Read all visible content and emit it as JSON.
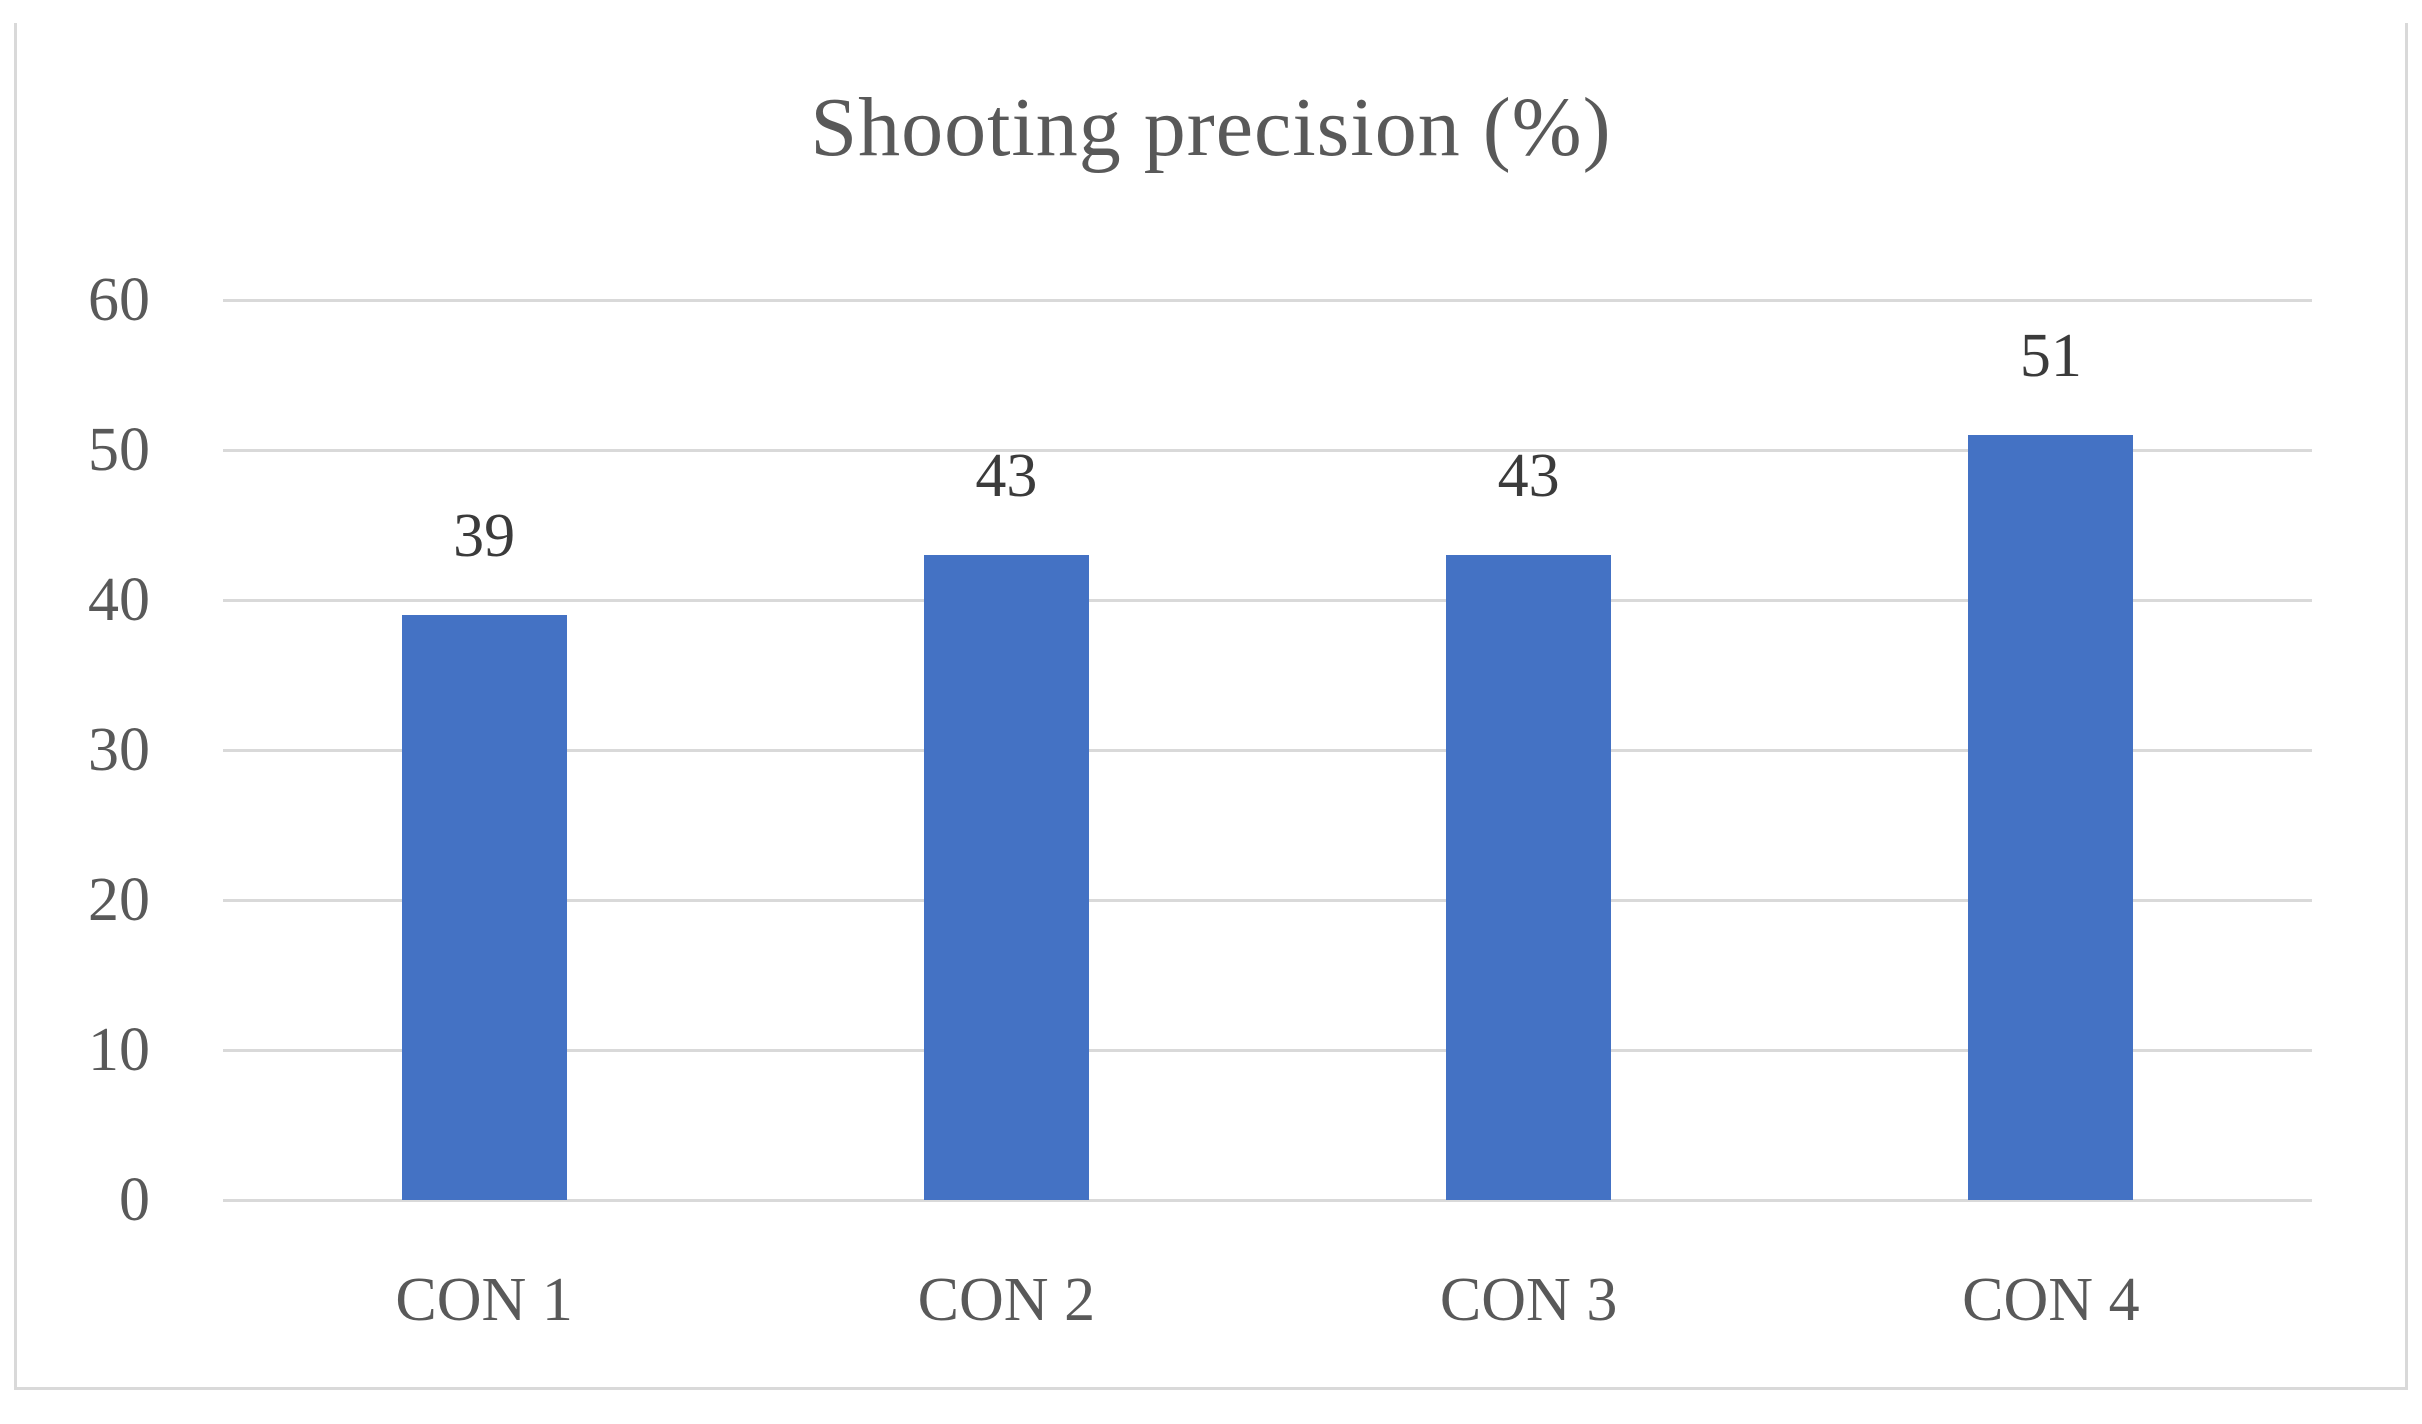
{
  "chart_data": {
    "type": "bar",
    "title": "Shooting precision (%)",
    "categories": [
      "CON 1",
      "CON 2",
      "CON 3",
      "CON 4"
    ],
    "values": [
      39,
      43,
      43,
      51
    ],
    "xlabel": "",
    "ylabel": "",
    "ylim": [
      0,
      60
    ],
    "ytick_step": 10,
    "yticks": [
      0,
      10,
      20,
      30,
      40,
      50,
      60
    ],
    "grid": "horizontal",
    "legend_position": "none",
    "data_labels_shown": true,
    "colors": {
      "bar": "#4472C4",
      "gridline": "#D9D9D9",
      "frame_border": "#D9D9D9",
      "title_text": "#595959",
      "axis_text": "#595959",
      "data_label_text": "#3B3B3B",
      "background": "#FFFFFF"
    }
  }
}
